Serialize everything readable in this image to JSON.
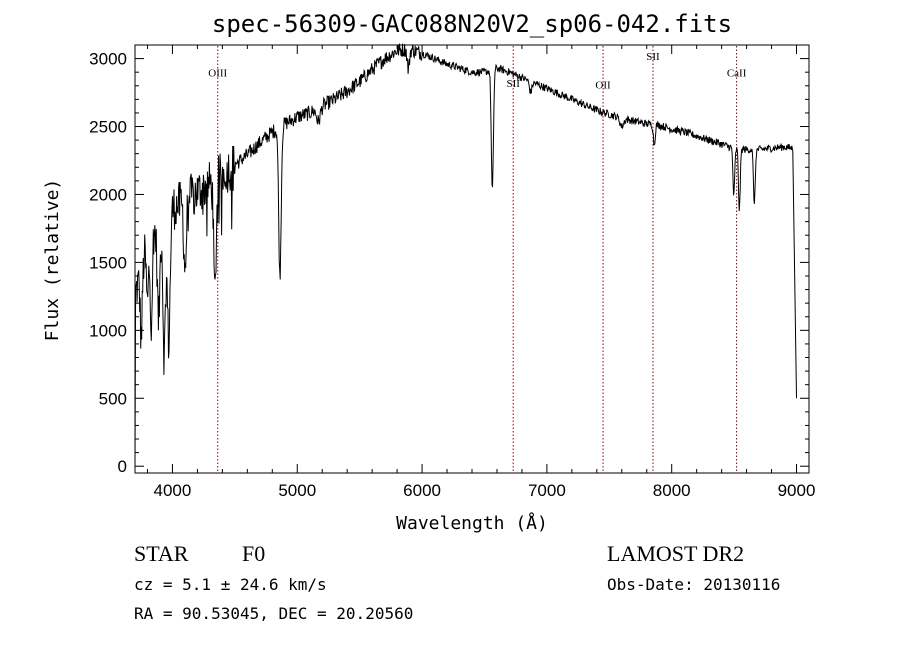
{
  "chart_data": {
    "type": "line",
    "title": "spec-56309-GAC088N20V2_sp06-042.fits",
    "xlabel": "Wavelength (Å)",
    "ylabel": "Flux (relative)",
    "xlim": [
      3700,
      9100
    ],
    "ylim": [
      -50,
      3100
    ],
    "xticks": [
      4000,
      5000,
      6000,
      7000,
      8000,
      9000
    ],
    "yticks": [
      0,
      500,
      1000,
      1500,
      2000,
      2500,
      3000
    ],
    "grid": false,
    "line_color": "#000000",
    "marker_color": "#8b0000",
    "continuum": [
      [
        3700,
        1250
      ],
      [
        3800,
        1650
      ],
      [
        3900,
        1780
      ],
      [
        4000,
        1900
      ],
      [
        4100,
        1950
      ],
      [
        4200,
        2020
      ],
      [
        4300,
        2080
      ],
      [
        4400,
        2150
      ],
      [
        4500,
        2220
      ],
      [
        4600,
        2290
      ],
      [
        4700,
        2380
      ],
      [
        4800,
        2460
      ],
      [
        4900,
        2520
      ],
      [
        5000,
        2570
      ],
      [
        5100,
        2600
      ],
      [
        5200,
        2650
      ],
      [
        5300,
        2700
      ],
      [
        5400,
        2760
      ],
      [
        5500,
        2830
      ],
      [
        5600,
        2920
      ],
      [
        5700,
        3000
      ],
      [
        5800,
        3060
      ],
      [
        5900,
        3070
      ],
      [
        6000,
        3040
      ],
      [
        6100,
        3000
      ],
      [
        6200,
        2960
      ],
      [
        6300,
        2930
      ],
      [
        6400,
        2900
      ],
      [
        6500,
        2900
      ],
      [
        6600,
        2930
      ],
      [
        6700,
        2900
      ],
      [
        6800,
        2860
      ],
      [
        6900,
        2820
      ],
      [
        7000,
        2780
      ],
      [
        7100,
        2740
      ],
      [
        7200,
        2700
      ],
      [
        7300,
        2660
      ],
      [
        7400,
        2620
      ],
      [
        7500,
        2590
      ],
      [
        7600,
        2560
      ],
      [
        7700,
        2540
      ],
      [
        7800,
        2520
      ],
      [
        7900,
        2510
      ],
      [
        8000,
        2480
      ],
      [
        8100,
        2460
      ],
      [
        8200,
        2430
      ],
      [
        8300,
        2400
      ],
      [
        8400,
        2370
      ],
      [
        8500,
        2340
      ],
      [
        8600,
        2330
      ],
      [
        8700,
        2330
      ],
      [
        8800,
        2340
      ],
      [
        8900,
        2350
      ],
      [
        8970,
        2340
      ]
    ],
    "absorption_lines": [
      {
        "x": 3750,
        "depth": 500,
        "width": 12
      },
      {
        "x": 3800,
        "depth": 450,
        "width": 12
      },
      {
        "x": 3830,
        "depth": 600,
        "width": 12
      },
      {
        "x": 3889,
        "depth": 700,
        "width": 14
      },
      {
        "x": 3934,
        "depth": 1000,
        "width": 14
      },
      {
        "x": 3970,
        "depth": 950,
        "width": 16
      },
      {
        "x": 4101,
        "depth": 500,
        "width": 14
      },
      {
        "x": 4340,
        "depth": 850,
        "width": 14
      },
      {
        "x": 4861,
        "depth": 1100,
        "width": 14
      },
      {
        "x": 5170,
        "depth": 100,
        "width": 20
      },
      {
        "x": 5890,
        "depth": 150,
        "width": 12
      },
      {
        "x": 6563,
        "depth": 900,
        "width": 12
      },
      {
        "x": 6870,
        "depth": 80,
        "width": 14
      },
      {
        "x": 7600,
        "depth": 60,
        "width": 20
      },
      {
        "x": 7860,
        "depth": 150,
        "width": 10
      },
      {
        "x": 8498,
        "depth": 350,
        "width": 10
      },
      {
        "x": 8542,
        "depth": 450,
        "width": 10
      },
      {
        "x": 8662,
        "depth": 400,
        "width": 10
      }
    ],
    "edge_drops": [
      {
        "x": 3700,
        "y": 0
      },
      {
        "x": 9000,
        "y": 500
      }
    ],
    "markers": [
      {
        "label": "OIII",
        "x": 4363,
        "label_y": 2870
      },
      {
        "label": "SII",
        "x": 6730,
        "label_y": 2790
      },
      {
        "label": "OII",
        "x": 7450,
        "label_y": 2780
      },
      {
        "label": "SII",
        "x": 7850,
        "label_y": 2990
      },
      {
        "label": "CaII",
        "x": 8520,
        "label_y": 2870
      }
    ]
  },
  "info": {
    "object": "STAR",
    "subclass": "F0",
    "survey": "LAMOST DR2",
    "cz": "cz = 5.1 ± 24.6 km/s",
    "obs_date": "Obs-Date: 20130116",
    "coords": "RA =  90.53045, DEC =  20.20560"
  }
}
